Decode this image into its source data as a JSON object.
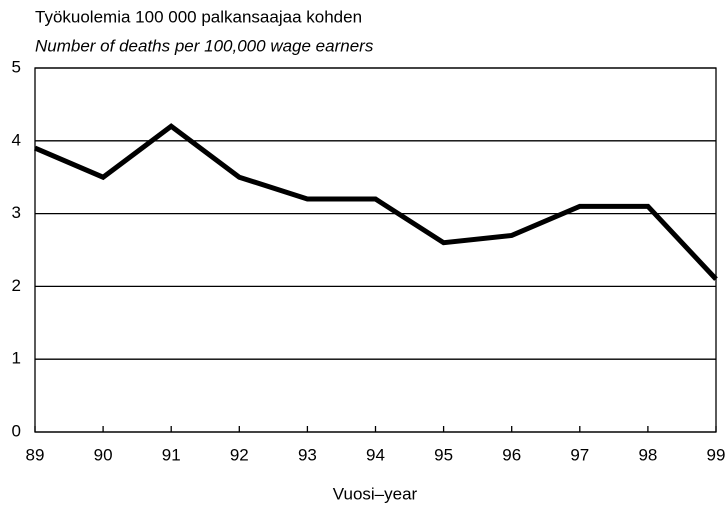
{
  "chart_data": {
    "type": "line",
    "title": "Työkuolemia 100 000 palkansaajaa kohden",
    "subtitle": "Number of deaths per 100,000 wage earners",
    "xlabel": "Vuosi–year",
    "categories": [
      "89",
      "90",
      "91",
      "92",
      "93",
      "94",
      "95",
      "96",
      "97",
      "98",
      "99"
    ],
    "values": [
      3.9,
      3.5,
      4.2,
      3.5,
      3.2,
      3.2,
      2.6,
      2.7,
      3.1,
      3.1,
      2.1
    ],
    "color": "#000000",
    "ylim": [
      0,
      5
    ],
    "yticks": [
      0,
      1,
      2,
      3,
      4,
      5
    ],
    "grid": true
  }
}
